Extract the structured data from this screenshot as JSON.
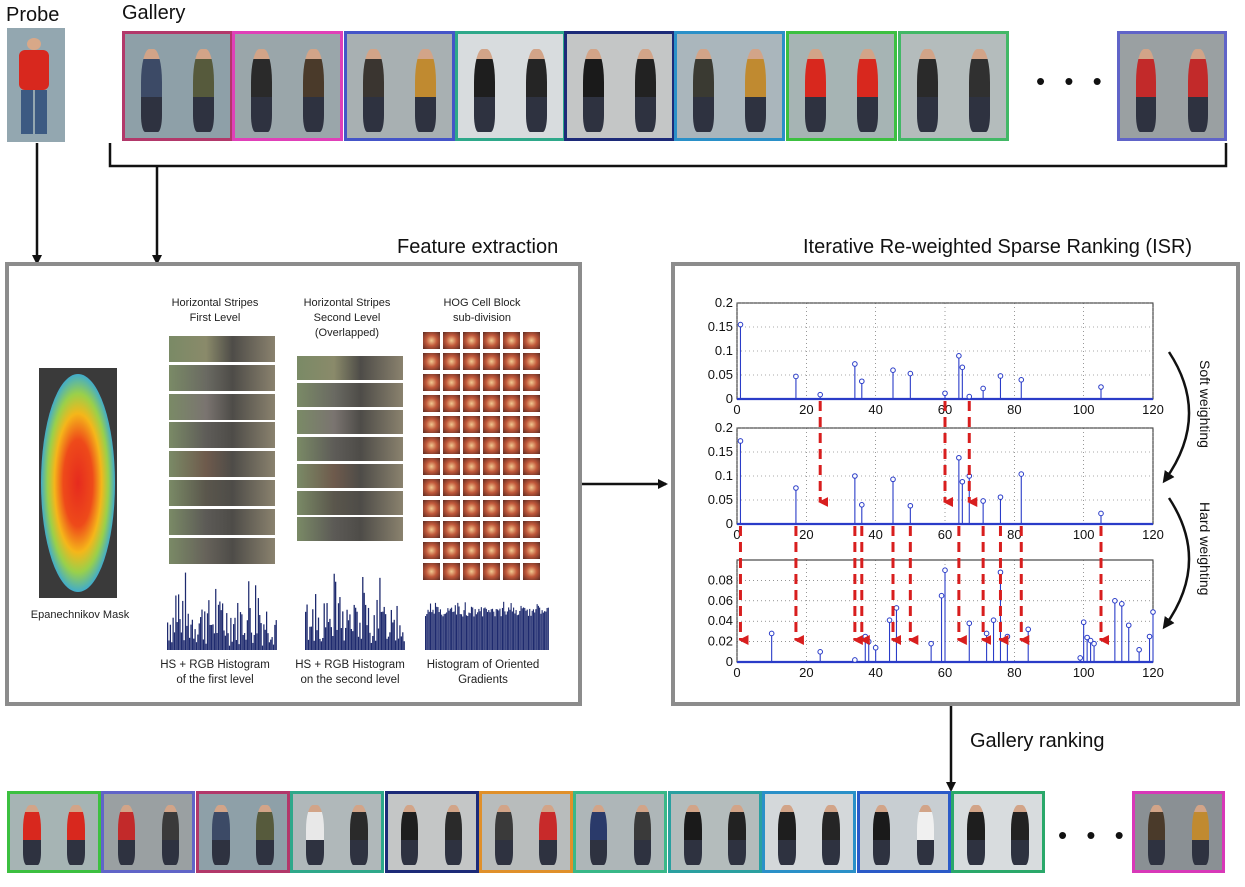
{
  "probe": {
    "label": "Probe"
  },
  "gallery": {
    "label": "Gallery",
    "ellipsis": "• • •",
    "items": [
      {
        "frame": "#b2386a",
        "shirt1": "#3c4a66",
        "shirt2": "#565a3c",
        "bg": "#8ea0a8"
      },
      {
        "frame": "#e040b8",
        "shirt1": "#2a2a2a",
        "shirt2": "#4a3a2a",
        "bg": "#9aa6aa"
      },
      {
        "frame": "#4455c8",
        "shirt1": "#3a3530",
        "shirt2": "#c08a30",
        "bg": "#a8b0b2"
      },
      {
        "frame": "#2ea88a",
        "shirt1": "#1e1e1e",
        "shirt2": "#252525",
        "bg": "#d8dcde"
      },
      {
        "frame": "#1c2a78",
        "shirt1": "#1a1a1a",
        "shirt2": "#222222",
        "bg": "#c4c6c6"
      },
      {
        "frame": "#2a90c8",
        "shirt1": "#3a3a32",
        "shirt2": "#c08a30",
        "bg": "#aab6bc"
      },
      {
        "frame": "#3cc040",
        "shirt1": "#d8281e",
        "shirt2": "#d8281e",
        "bg": "#a6b4b4"
      },
      {
        "frame": "#42b866",
        "shirt1": "#2a2a2a",
        "shirt2": "#303030",
        "bg": "#b4bcbc"
      },
      {
        "frame": "#6064c8",
        "shirt1": "#c22a2a",
        "shirt2": "#c22a2a",
        "bg": "#9aa0a2"
      }
    ]
  },
  "feature_extraction": {
    "title": "Feature extraction",
    "mask_caption": "Epanechnikov Mask",
    "col1_header": [
      "Horizontal Stripes",
      "First Level"
    ],
    "col2_header": [
      "Horizontal Stripes",
      "Second Level",
      "(Overlapped)"
    ],
    "col3_header": [
      "HOG Cell Block",
      "sub-division"
    ],
    "col1_caption": [
      "HS + RGB Histogram",
      "of the first level"
    ],
    "col2_caption": [
      "HS + RGB Histogram",
      "on the second level"
    ],
    "col3_caption": [
      "Histogram of Oriented",
      "Gradients"
    ]
  },
  "isr": {
    "title": "Iterative Re-weighted Sparse Ranking (ISR)",
    "soft_label": "Soft weighting",
    "hard_label": "Hard weighting"
  },
  "gallery_ranking": {
    "label": "Gallery ranking",
    "ellipsis": "• • •",
    "items": [
      {
        "frame": "#3cc040",
        "shirt1": "#d8281e",
        "shirt2": "#d8281e",
        "bg": "#a6b4b4"
      },
      {
        "frame": "#6064c8",
        "shirt1": "#c22a2a",
        "shirt2": "#3a3a3a",
        "bg": "#9aa0a2"
      },
      {
        "frame": "#b2386a",
        "shirt1": "#3c4a66",
        "shirt2": "#565a3c",
        "bg": "#8ea0a8"
      },
      {
        "frame": "#2ea88a",
        "shirt1": "#e8e8e8",
        "shirt2": "#2a2a2a",
        "bg": "#b0b8ba"
      },
      {
        "frame": "#1c2a78",
        "shirt1": "#1e1e1e",
        "shirt2": "#2a2a2a",
        "bg": "#c4c6c6"
      },
      {
        "frame": "#e0902a",
        "shirt1": "#3a3a3a",
        "shirt2": "#c82a2a",
        "bg": "#b8bcbc"
      },
      {
        "frame": "#38b888",
        "shirt1": "#2a3a6a",
        "shirt2": "#3a3a3a",
        "bg": "#aeb6b8"
      },
      {
        "frame": "#2aa0a0",
        "shirt1": "#1a1a1a",
        "shirt2": "#222222",
        "bg": "#b4bcbc"
      },
      {
        "frame": "#2a90c8",
        "shirt1": "#1e1e1e",
        "shirt2": "#252525",
        "bg": "#d4d8da"
      },
      {
        "frame": "#2a5ac8",
        "shirt1": "#1a1a1a",
        "shirt2": "#f0f0f0",
        "bg": "#c8ced2"
      },
      {
        "frame": "#2aa86a",
        "shirt1": "#1e1e1e",
        "shirt2": "#222222",
        "bg": "#d8dcde"
      },
      {
        "frame": "#d838b8",
        "shirt1": "#4a3a2a",
        "shirt2": "#c08a30",
        "bg": "#8a9094"
      }
    ]
  },
  "chart_data": [
    {
      "type": "stem",
      "xlim": [
        0,
        120
      ],
      "ylim": [
        0,
        0.2
      ],
      "xticks": [
        "0",
        "20",
        "40",
        "60",
        "80",
        "100",
        "120"
      ],
      "yticks": [
        "0",
        "0.05",
        "0.1",
        "0.15",
        "0.2"
      ],
      "grid": true,
      "points": [
        [
          1,
          0.155
        ],
        [
          17,
          0.047
        ],
        [
          24,
          0.009
        ],
        [
          34,
          0.073
        ],
        [
          36,
          0.037
        ],
        [
          45,
          0.06
        ],
        [
          50,
          0.053
        ],
        [
          60,
          0.012
        ],
        [
          64,
          0.09
        ],
        [
          65,
          0.066
        ],
        [
          67,
          0.005
        ],
        [
          71,
          0.022
        ],
        [
          76,
          0.048
        ],
        [
          82,
          0.04
        ],
        [
          105,
          0.025
        ]
      ]
    },
    {
      "type": "stem",
      "xlim": [
        0,
        120
      ],
      "ylim": [
        0,
        0.2
      ],
      "xticks": [
        "0",
        "20",
        "40",
        "60",
        "80",
        "100",
        "120"
      ],
      "yticks": [
        "0",
        "0.05",
        "0.1",
        "0.15",
        "0.2"
      ],
      "grid": true,
      "points": [
        [
          1,
          0.173
        ],
        [
          17,
          0.075
        ],
        [
          34,
          0.1
        ],
        [
          36,
          0.04
        ],
        [
          45,
          0.093
        ],
        [
          50,
          0.038
        ],
        [
          64,
          0.138
        ],
        [
          65,
          0.088
        ],
        [
          67,
          0.1
        ],
        [
          71,
          0.048
        ],
        [
          76,
          0.056
        ],
        [
          82,
          0.104
        ],
        [
          105,
          0.022
        ]
      ]
    },
    {
      "type": "stem",
      "xlim": [
        0,
        120
      ],
      "ylim": [
        0,
        0.1
      ],
      "xticks": [
        "0",
        "20",
        "40",
        "60",
        "80",
        "100",
        "120"
      ],
      "yticks": [
        "0",
        "0.02",
        "0.04",
        "0.06",
        "0.08"
      ],
      "grid": true,
      "points": [
        [
          10,
          0.028
        ],
        [
          24,
          0.01
        ],
        [
          34,
          0.002
        ],
        [
          37,
          0.025
        ],
        [
          38,
          0.02
        ],
        [
          40,
          0.014
        ],
        [
          44,
          0.041
        ],
        [
          46,
          0.053
        ],
        [
          56,
          0.018
        ],
        [
          59,
          0.065
        ],
        [
          60,
          0.09
        ],
        [
          67,
          0.038
        ],
        [
          72,
          0.028
        ],
        [
          74,
          0.041
        ],
        [
          76,
          0.088
        ],
        [
          78,
          0.025
        ],
        [
          84,
          0.032
        ],
        [
          99,
          0.004
        ],
        [
          100,
          0.039
        ],
        [
          101,
          0.024
        ],
        [
          102,
          0.021
        ],
        [
          103,
          0.018
        ],
        [
          109,
          0.06
        ],
        [
          111,
          0.057
        ],
        [
          113,
          0.036
        ],
        [
          116,
          0.012
        ],
        [
          119,
          0.025
        ],
        [
          120,
          0.049
        ]
      ]
    }
  ]
}
